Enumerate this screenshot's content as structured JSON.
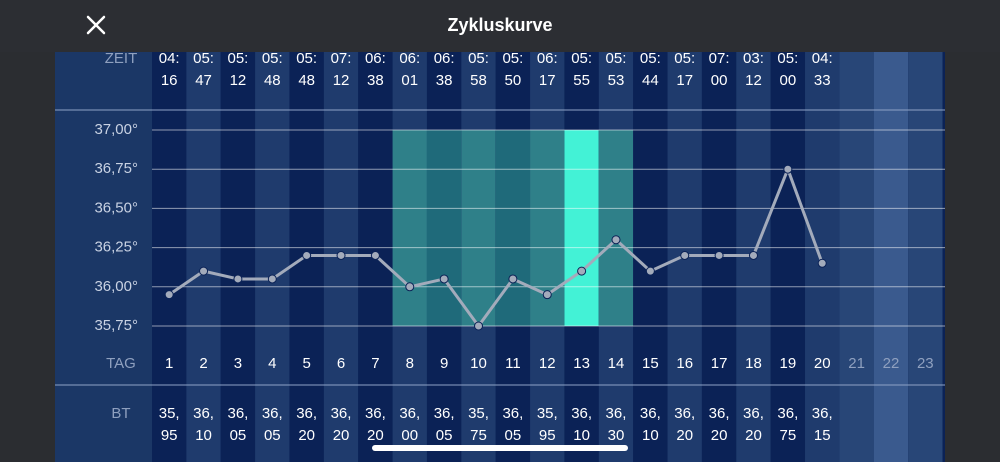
{
  "header": {
    "title": "Zykluskurve"
  },
  "chart_data": {
    "type": "line",
    "time_label": "ZEIT",
    "category_label": "TAG",
    "value_label": "BT",
    "categories": [
      "1",
      "2",
      "3",
      "4",
      "5",
      "6",
      "7",
      "8",
      "9",
      "10",
      "11",
      "12",
      "13",
      "14",
      "15",
      "16",
      "17",
      "18",
      "19",
      "20",
      "21",
      "22",
      "23"
    ],
    "times": [
      "04:16",
      "05:47",
      "05:12",
      "05:48",
      "05:48",
      "07:12",
      "06:38",
      "06:01",
      "06:38",
      "05:58",
      "05:50",
      "06:17",
      "05:55",
      "05:53",
      "05:44",
      "05:17",
      "07:00",
      "03:12",
      "05:00",
      "04:33",
      null,
      null,
      null
    ],
    "values": [
      35.95,
      36.1,
      36.05,
      36.05,
      36.2,
      36.2,
      36.2,
      36.0,
      36.05,
      35.75,
      36.05,
      35.95,
      36.1,
      36.3,
      36.1,
      36.2,
      36.2,
      36.2,
      36.75,
      36.15,
      null,
      null,
      null
    ],
    "value_labels": [
      "35,95",
      "36,10",
      "36,05",
      "36,05",
      "36,20",
      "36,20",
      "36,20",
      "36,00",
      "36,05",
      "35,75",
      "36,05",
      "35,95",
      "36,10",
      "36,30",
      "36,10",
      "36,20",
      "36,20",
      "36,20",
      "36,75",
      "36,15",
      null,
      null,
      null
    ],
    "color": "#a3abbb",
    "ylim": [
      35.75,
      37
    ],
    "yticks": [
      {
        "value": 35.75,
        "label": "35,75°"
      },
      {
        "value": 36,
        "label": "36,00°"
      },
      {
        "value": 36.25,
        "label": "36,25°"
      },
      {
        "value": 36.5,
        "label": "36,50°"
      },
      {
        "value": 36.75,
        "label": "36,75°"
      },
      {
        "value": 37,
        "label": "37,00°"
      }
    ],
    "grid": true,
    "fertile_window": [
      8,
      14
    ],
    "ovulation_day": 13
  }
}
